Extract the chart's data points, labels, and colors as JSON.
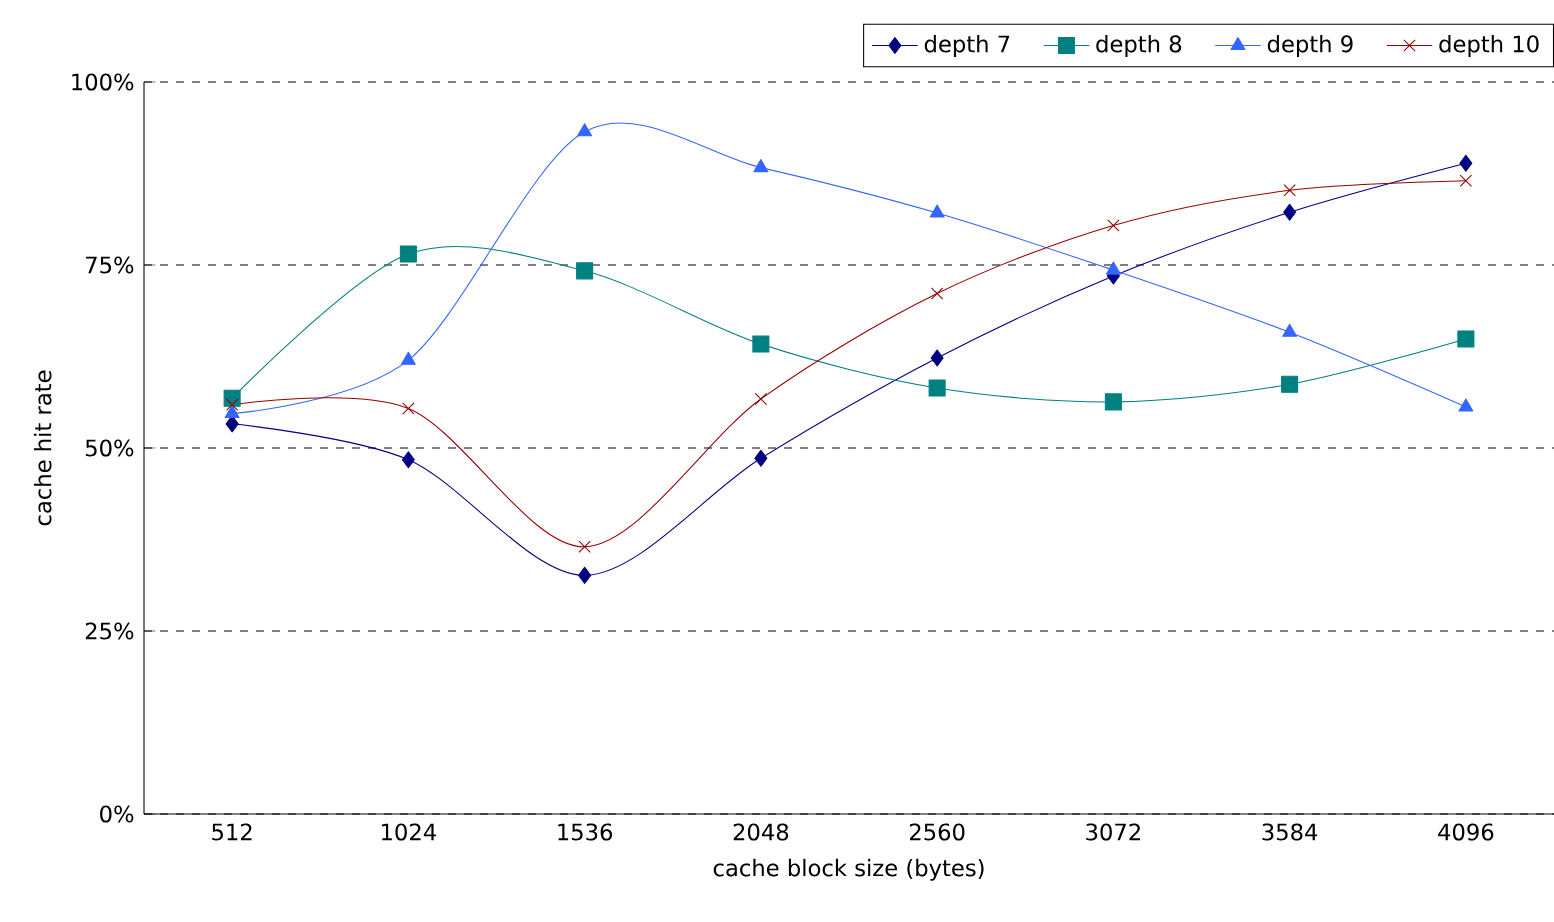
{
  "chart_data": {
    "type": "line",
    "xlabel": "cache block size (bytes)",
    "ylabel": "cache hit rate",
    "categories": [
      "512",
      "1024",
      "1536",
      "2048",
      "2560",
      "3072",
      "3584",
      "4096"
    ],
    "ylim": [
      0,
      100
    ],
    "yticks": [
      {
        "value": 0,
        "label": "0%"
      },
      {
        "value": 25,
        "label": "25%"
      },
      {
        "value": 50,
        "label": "50%"
      },
      {
        "value": 75,
        "label": "75%"
      },
      {
        "value": 100,
        "label": "100%"
      }
    ],
    "grid": "y",
    "legend": "top right",
    "line_style": "solid",
    "series": [
      {
        "name": "depth 7",
        "color": "#000080",
        "marker": "diamond",
        "values": [
          53.3,
          48.4,
          32.6,
          48.6,
          62.3,
          73.5,
          82.2,
          88.9
        ]
      },
      {
        "name": "depth 8",
        "color": "#008080",
        "marker": "square",
        "values": [
          56.8,
          76.5,
          74.2,
          64.2,
          58.2,
          56.3,
          58.7,
          64.9
        ]
      },
      {
        "name": "depth 9",
        "color": "#3366ff",
        "marker": "triangle",
        "values": [
          54.7,
          62.0,
          93.2,
          88.3,
          82.1,
          74.3,
          65.8,
          55.6
        ]
      },
      {
        "name": "depth 10",
        "color": "#990000",
        "marker": "cross",
        "values": [
          55.9,
          55.4,
          36.5,
          56.7,
          71.1,
          80.4,
          85.2,
          86.5
        ]
      }
    ]
  }
}
